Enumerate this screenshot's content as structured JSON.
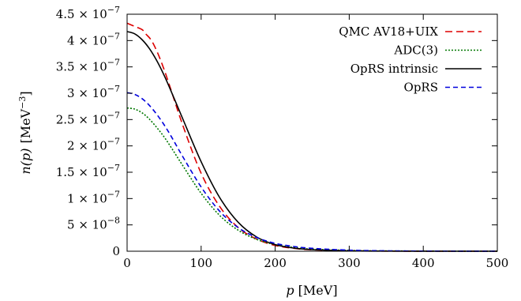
{
  "chart_data": {
    "type": "line",
    "title": "",
    "xlabel_var": "p",
    "xlabel_unit": "[MeV]",
    "ylabel_var": "n(p)",
    "ylabel_unit_base": "[MeV",
    "ylabel_unit_exp": "−3",
    "ylabel_unit_close": "]",
    "xlim": [
      0,
      500
    ],
    "ylim": [
      0,
      4.5e-07
    ],
    "grid": false,
    "legend_position": "top-right",
    "x_ticks": [
      {
        "value": 0,
        "label": "0"
      },
      {
        "value": 100,
        "label": "100"
      },
      {
        "value": 200,
        "label": "200"
      },
      {
        "value": 300,
        "label": "300"
      },
      {
        "value": 400,
        "label": "400"
      },
      {
        "value": 500,
        "label": "500"
      }
    ],
    "y_ticks": [
      {
        "value": 0,
        "mant": "0",
        "exp": ""
      },
      {
        "value": 5e-08,
        "mant": "5 × 10",
        "exp": "−8"
      },
      {
        "value": 1e-07,
        "mant": "1 × 10",
        "exp": "−7"
      },
      {
        "value": 1.5e-07,
        "mant": "1.5 × 10",
        "exp": "−7"
      },
      {
        "value": 2e-07,
        "mant": "2 × 10",
        "exp": "−7"
      },
      {
        "value": 2.5e-07,
        "mant": "2.5 × 10",
        "exp": "−7"
      },
      {
        "value": 3e-07,
        "mant": "3 × 10",
        "exp": "−7"
      },
      {
        "value": 3.5e-07,
        "mant": "3.5 × 10",
        "exp": "−7"
      },
      {
        "value": 4e-07,
        "mant": "4 × 10",
        "exp": "−7"
      },
      {
        "value": 4.5e-07,
        "mant": "4.5 × 10",
        "exp": "−7"
      }
    ],
    "series": [
      {
        "name": "QMC AV18+UIX",
        "color": "#dd0000",
        "dash": "9,5",
        "x": [
          0,
          10,
          20,
          25,
          35,
          50,
          75,
          100,
          125,
          150,
          175,
          200,
          225,
          250,
          300,
          350,
          400,
          450,
          500
        ],
        "y": [
          4.33e-07,
          4.27e-07,
          4.21e-07,
          4.13e-07,
          3.95e-07,
          3.45e-07,
          2.4e-07,
          1.48e-07,
          8.5e-08,
          4.5e-08,
          2.3e-08,
          1.1e-08,
          5.5e-09,
          2.8e-09,
          9e-10,
          3e-10,
          1e-10,
          5e-11,
          0
        ]
      },
      {
        "name": "ADC(3)",
        "color": "#007700",
        "dash": "2,2",
        "x": [
          0,
          10,
          20,
          30,
          40,
          50,
          60,
          75,
          100,
          125,
          150,
          175,
          200,
          225,
          250,
          300,
          350,
          400,
          450,
          500
        ],
        "y": [
          2.72e-07,
          2.7e-07,
          2.63e-07,
          2.51e-07,
          2.35e-07,
          2.17e-07,
          1.96e-07,
          1.63e-07,
          1.1e-07,
          6.8e-08,
          4e-08,
          2.25e-08,
          1.25e-08,
          7e-09,
          4e-09,
          1.5e-09,
          6e-10,
          3e-10,
          1.5e-10,
          1e-10
        ]
      },
      {
        "name": "OpRS intrinsic",
        "color": "#000000",
        "dash": "",
        "x": [
          0,
          10,
          20,
          30,
          40,
          50,
          60,
          75,
          100,
          125,
          150,
          175,
          200,
          225,
          250,
          300,
          350,
          400,
          450,
          500
        ],
        "y": [
          4.17e-07,
          4.13e-07,
          4.02e-07,
          3.85e-07,
          3.62e-07,
          3.34e-07,
          3.02e-07,
          2.52e-07,
          1.7e-07,
          1.02e-07,
          5.5e-08,
          2.7e-08,
          1.25e-08,
          6e-09,
          3e-09,
          8e-10,
          2e-10,
          5e-11,
          1e-11,
          0
        ]
      },
      {
        "name": "OpRS",
        "color": "#0000dd",
        "dash": "6,4",
        "x": [
          0,
          10,
          20,
          30,
          40,
          50,
          60,
          75,
          100,
          125,
          150,
          175,
          200,
          225,
          250,
          300,
          350,
          400,
          450,
          500
        ],
        "y": [
          3.01e-07,
          2.98e-07,
          2.9e-07,
          2.77e-07,
          2.6e-07,
          2.4e-07,
          2.17e-07,
          1.8e-07,
          1.22e-07,
          7.6e-08,
          4.5e-08,
          2.6e-08,
          1.5e-08,
          9e-09,
          5.5e-09,
          2e-09,
          8e-10,
          3e-10,
          1.5e-10,
          1e-10
        ]
      }
    ]
  }
}
